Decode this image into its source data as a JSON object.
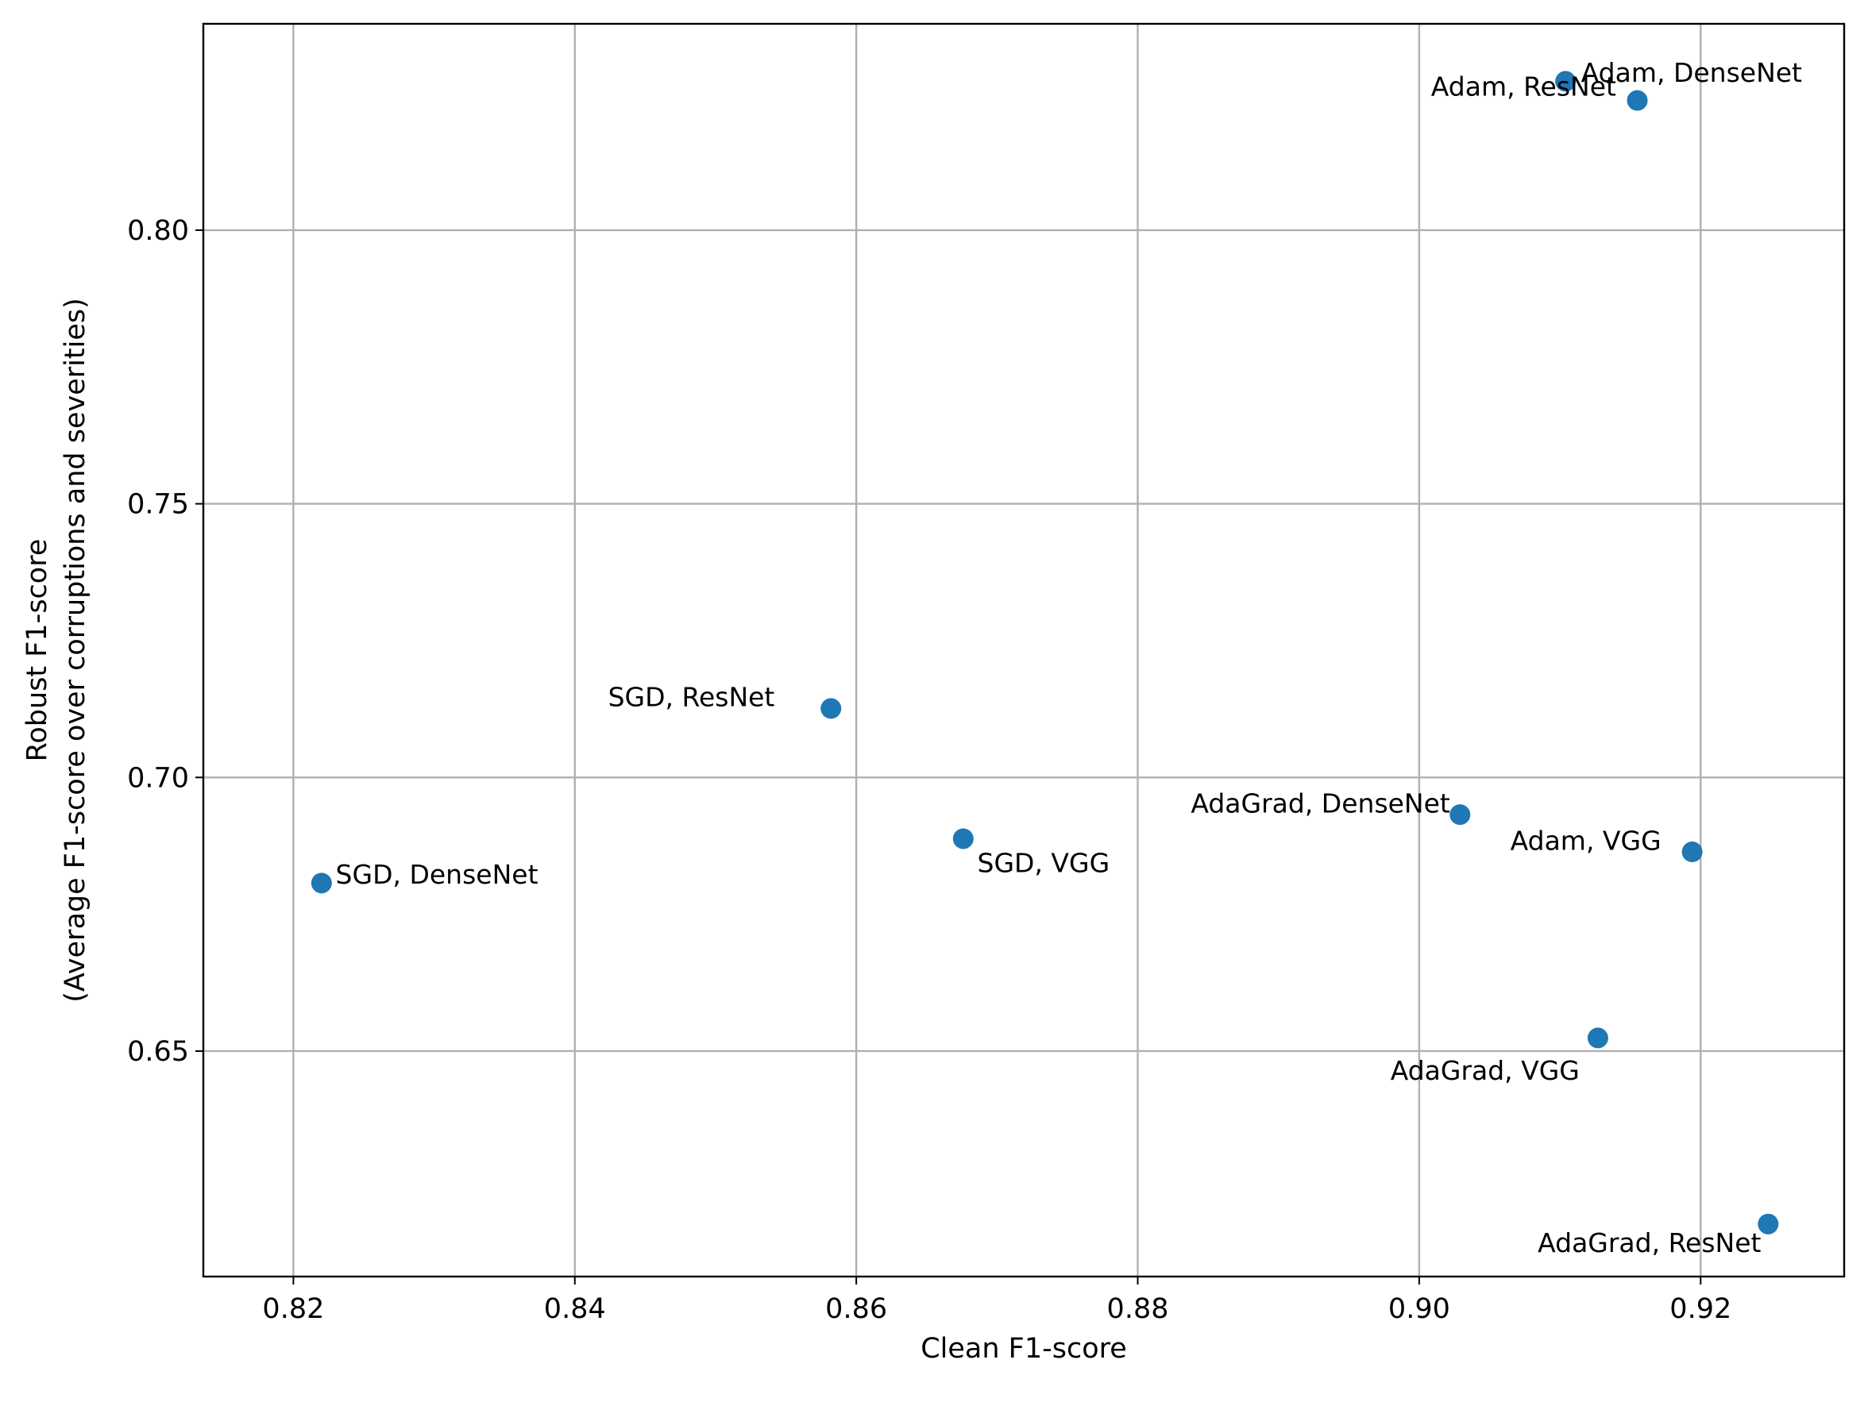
{
  "chart_data": {
    "type": "scatter",
    "title": "",
    "xlabel": "Clean F1-score",
    "ylabel_lines": [
      "Robust F1-score",
      "(Average F1-score over corruptions and severities)"
    ],
    "xlim": [
      0.8136,
      0.9302
    ],
    "ylim": [
      0.6088,
      0.8377
    ],
    "xticks": [
      0.82,
      0.84,
      0.86,
      0.88,
      0.9,
      0.92
    ],
    "xtick_labels": [
      "0.82",
      "0.84",
      "0.86",
      "0.88",
      "0.90",
      "0.92"
    ],
    "yticks": [
      0.65,
      0.7,
      0.75,
      0.8
    ],
    "ytick_labels": [
      "0.65",
      "0.70",
      "0.75",
      "0.80"
    ],
    "grid": true,
    "marker_color": "#1f77b4",
    "points": [
      {
        "label": "Adam, ResNet",
        "x": 0.9104,
        "y": 0.8272,
        "anchor": "end",
        "dx": 0.0036,
        "dy": -0.001
      },
      {
        "label": "Adam, DenseNet",
        "x": 0.9155,
        "y": 0.8237,
        "anchor": "start",
        "dx": -0.004,
        "dy": 0.005
      },
      {
        "label": "SGD, ResNet",
        "x": 0.8582,
        "y": 0.7126,
        "anchor": "end",
        "dx": -0.004,
        "dy": 0.002
      },
      {
        "label": "AdaGrad, DenseNet",
        "x": 0.9029,
        "y": 0.6932,
        "anchor": "end",
        "dx": -0.0007,
        "dy": 0.002
      },
      {
        "label": "SGD, VGG",
        "x": 0.8676,
        "y": 0.6888,
        "anchor": "start",
        "dx": 0.001,
        "dy": -0.0045
      },
      {
        "label": "Adam, VGG",
        "x": 0.9194,
        "y": 0.6864,
        "anchor": "end",
        "dx": -0.0022,
        "dy": 0.002
      },
      {
        "label": "SGD, DenseNet",
        "x": 0.822,
        "y": 0.6807,
        "anchor": "start",
        "dx": 0.001,
        "dy": 0.0015
      },
      {
        "label": "AdaGrad, VGG",
        "x": 0.9127,
        "y": 0.6524,
        "anchor": "end",
        "dx": -0.0013,
        "dy": -0.006
      },
      {
        "label": "AdaGrad, ResNet",
        "x": 0.9248,
        "y": 0.6184,
        "anchor": "end",
        "dx": -0.0005,
        "dy": -0.0035
      }
    ]
  }
}
